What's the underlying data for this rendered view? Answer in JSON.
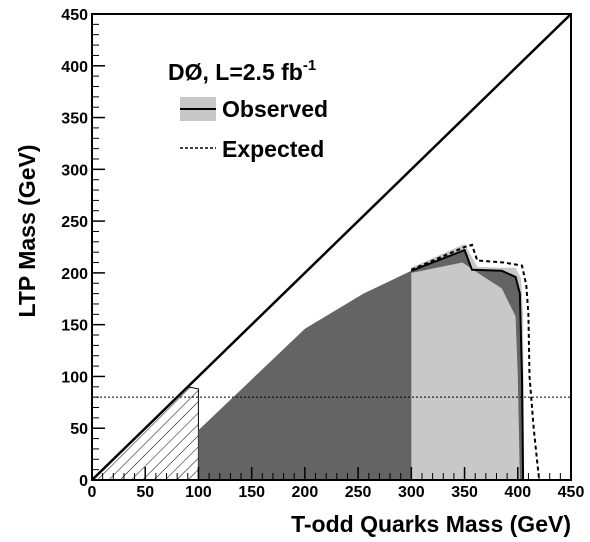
{
  "chart_data": {
    "type": "area",
    "xlabel": "T-odd Quarks Mass (GeV)",
    "ylabel": "LTP Mass (GeV)",
    "xlim": [
      0,
      450
    ],
    "ylim": [
      0,
      450
    ],
    "xticks": [
      "0",
      "50",
      "100",
      "150",
      "200",
      "250",
      "300",
      "350",
      "400",
      "450"
    ],
    "yticks": [
      "0",
      "50",
      "100",
      "150",
      "200",
      "250",
      "300",
      "350",
      "400",
      "450"
    ],
    "legend": {
      "placement": "top-left",
      "title_main": "DØ, L=2.5 fb",
      "title_sup": "-1",
      "entries": [
        {
          "label": "Observed",
          "style": "solid line with grey band"
        },
        {
          "label": "Expected",
          "style": "dashed line"
        }
      ]
    },
    "reference_lines": {
      "diagonal": [
        [
          0,
          0
        ],
        [
          450,
          450
        ]
      ],
      "horizontal_dotted_y": 80
    },
    "lep_excluded_hatched": [
      [
        0,
        0
      ],
      [
        100,
        0
      ],
      [
        100,
        88
      ],
      [
        90,
        90
      ],
      [
        0,
        0
      ]
    ],
    "series": [
      {
        "name": "Observed",
        "boundary": [
          [
            100,
            48
          ],
          [
            200,
            146
          ],
          [
            255,
            180
          ],
          [
            300,
            202
          ],
          [
            350,
            222
          ],
          [
            357,
            203
          ],
          [
            385,
            202
          ],
          [
            398,
            196
          ],
          [
            402,
            180
          ],
          [
            404,
            100
          ],
          [
            405,
            0
          ]
        ],
        "band_upper": [
          [
            300,
            205
          ],
          [
            350,
            228
          ],
          [
            362,
            206
          ],
          [
            385,
            205
          ],
          [
            398,
            205
          ],
          [
            403,
            195
          ],
          [
            405,
            160
          ],
          [
            406,
            0
          ]
        ],
        "band_lower": [
          [
            300,
            200
          ],
          [
            348,
            210
          ],
          [
            370,
            195
          ],
          [
            385,
            185
          ],
          [
            398,
            158
          ],
          [
            400,
            100
          ],
          [
            402,
            0
          ]
        ],
        "fill_color": "#646464",
        "band_color": "#c8c8c8"
      },
      {
        "name": "Expected",
        "boundary": [
          [
            300,
            203
          ],
          [
            350,
            225
          ],
          [
            357,
            227
          ],
          [
            362,
            212
          ],
          [
            387,
            210
          ],
          [
            404,
            207
          ],
          [
            408,
            188
          ],
          [
            410,
            160
          ],
          [
            411,
            100
          ],
          [
            415,
            50
          ],
          [
            420,
            0
          ]
        ]
      }
    ]
  }
}
